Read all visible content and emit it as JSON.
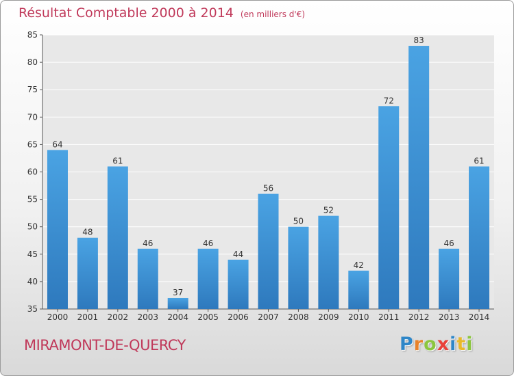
{
  "title": "Résultat Comptable 2000 à 2014",
  "unit": "(en milliers d'€)",
  "city": "MIRAMONT-DE-QUERCY",
  "logo": {
    "letters": [
      "P",
      "r",
      "o",
      "x",
      "i",
      "t",
      "i"
    ],
    "colors": [
      "#2e86c8",
      "#e8822a",
      "#8cc63f",
      "#e8403a",
      "#2e86c8",
      "#e8b92a",
      "#8cc63f"
    ]
  },
  "colors": {
    "bar": "#4aa3e3",
    "bar_dark": "#2e79bd",
    "title": "#c0395a"
  },
  "chart_data": {
    "type": "bar",
    "categories": [
      "2000",
      "2001",
      "2002",
      "2003",
      "2004",
      "2005",
      "2006",
      "2007",
      "2008",
      "2009",
      "2010",
      "2011",
      "2012",
      "2013",
      "2014"
    ],
    "values": [
      64,
      48,
      61,
      46,
      37,
      46,
      44,
      56,
      50,
      52,
      42,
      72,
      83,
      46,
      61
    ],
    "ylim": [
      35,
      85
    ],
    "yticks": [
      35,
      40,
      45,
      50,
      55,
      60,
      65,
      70,
      75,
      80,
      85
    ],
    "grid": true,
    "title": "Résultat Comptable 2000 à 2014",
    "xlabel": "",
    "ylabel": ""
  }
}
